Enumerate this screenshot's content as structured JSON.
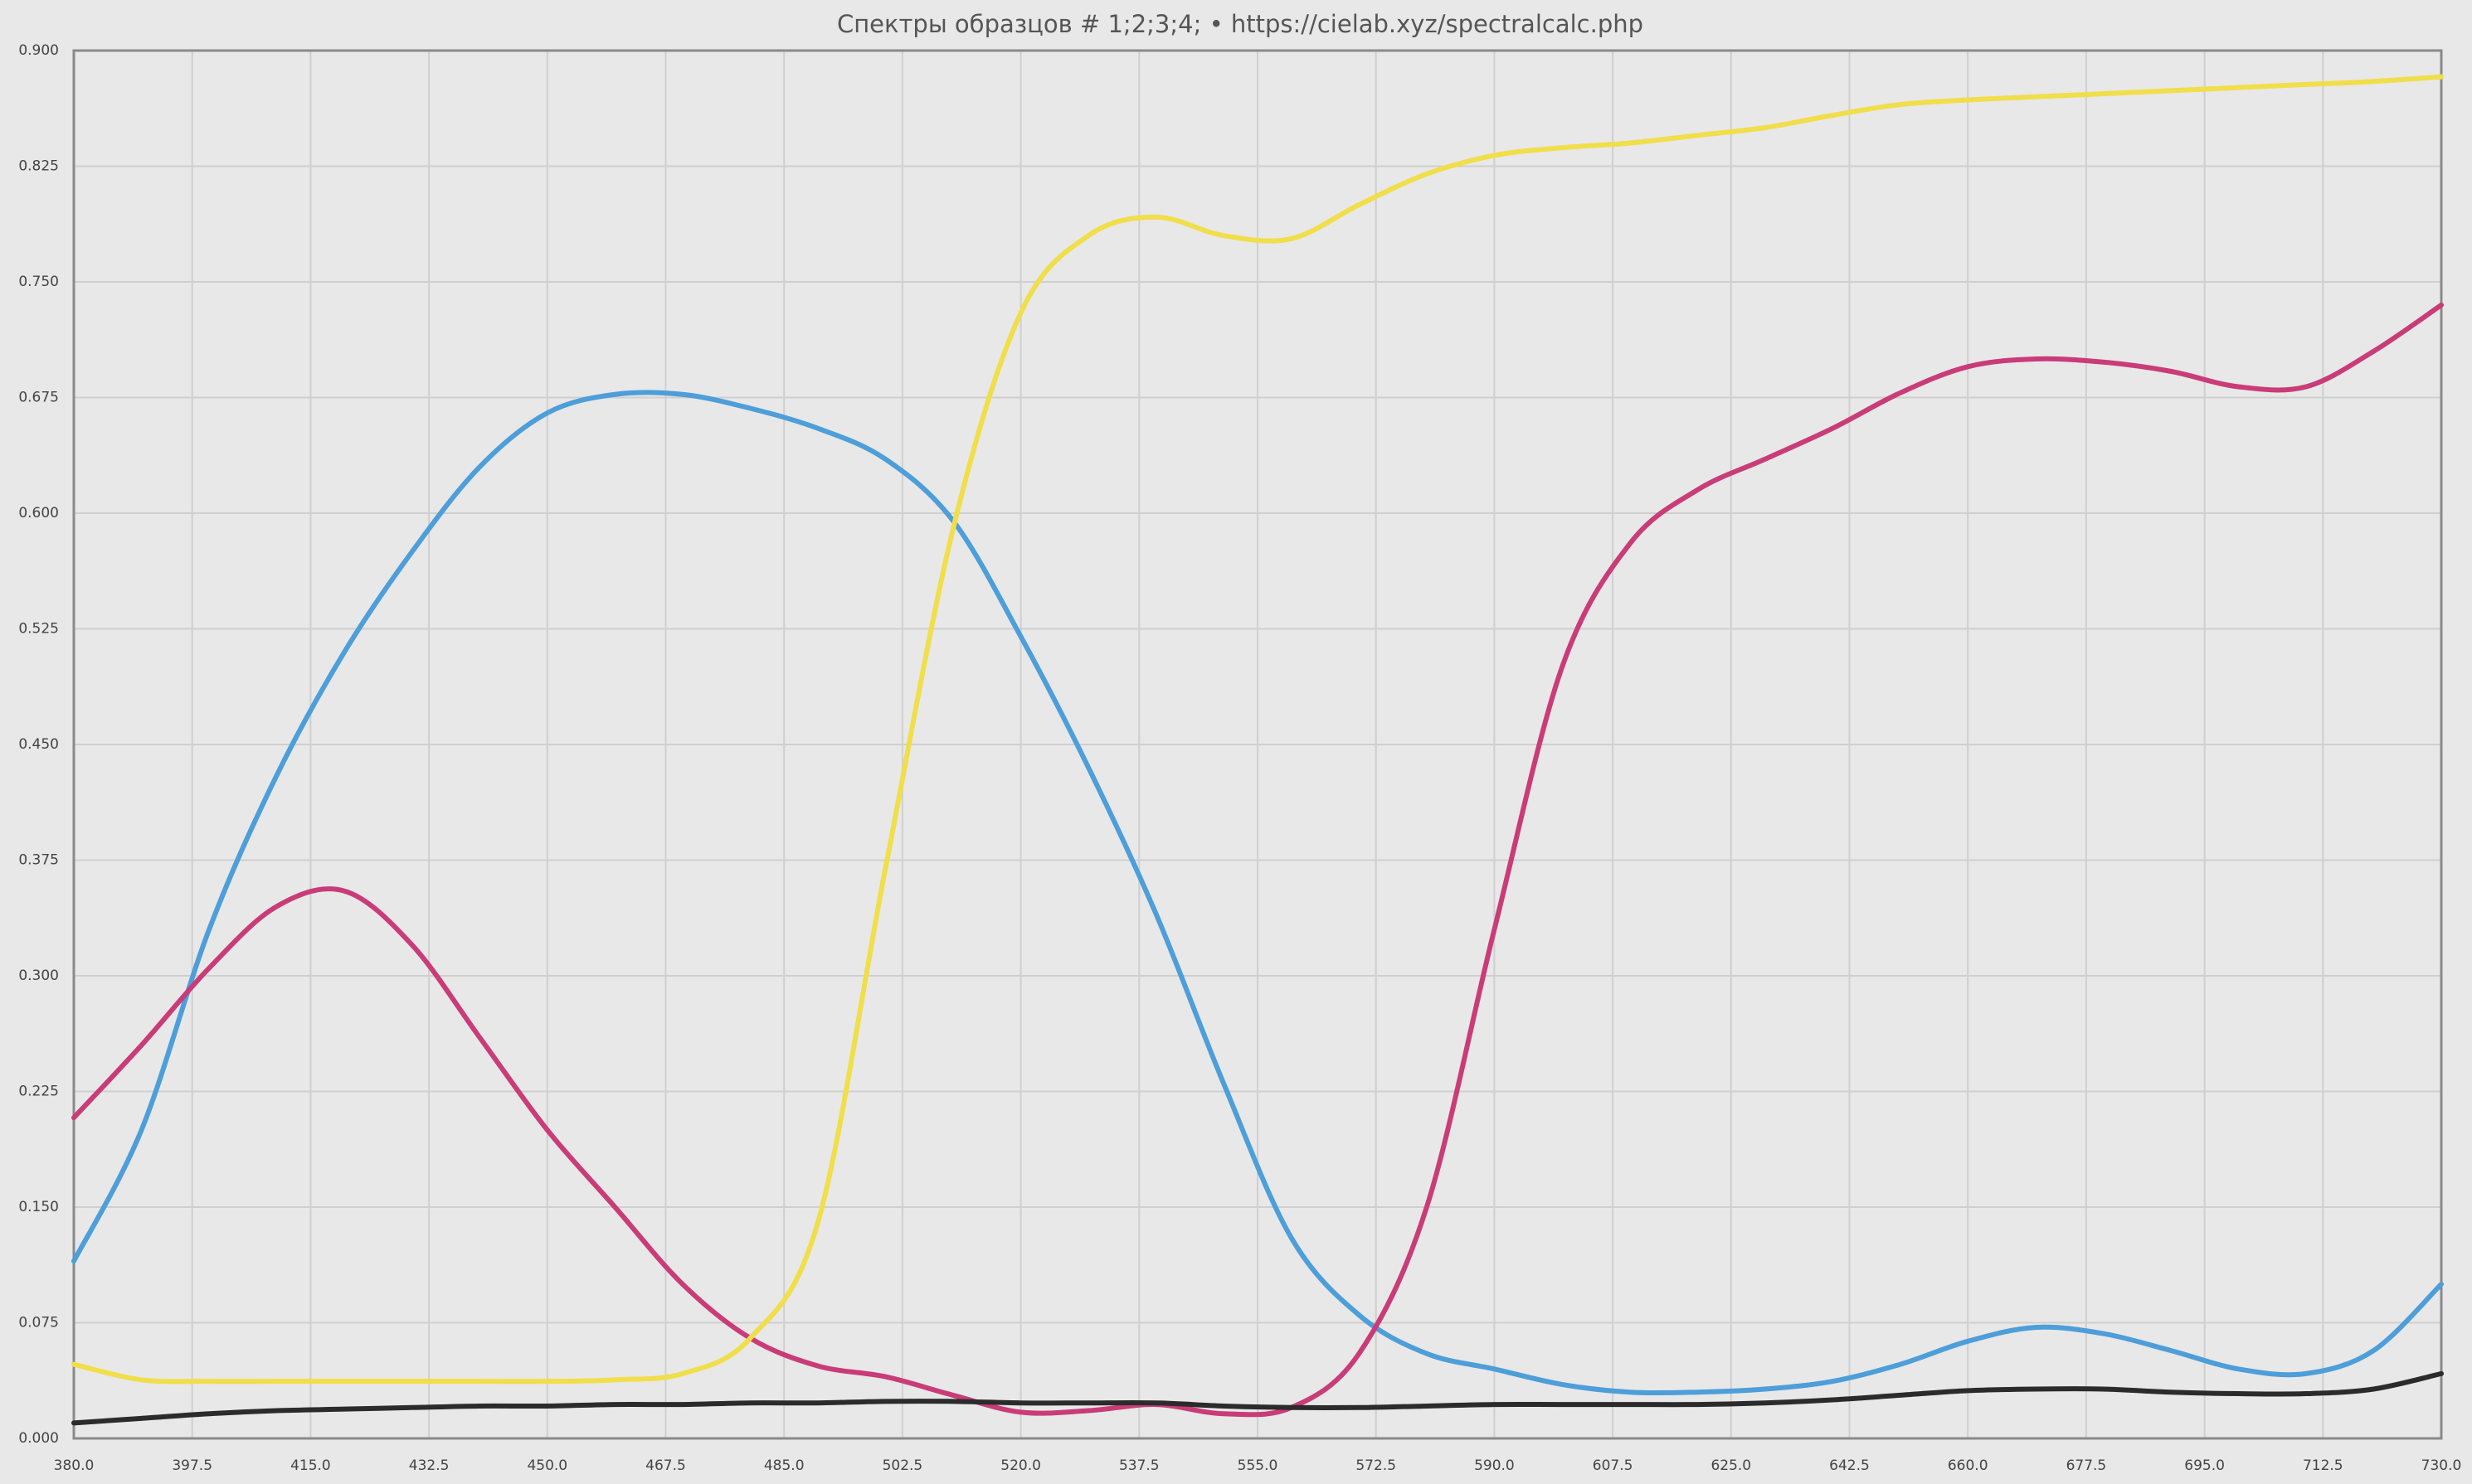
{
  "chart_data": {
    "type": "line",
    "title": "Спектры образцов # 1;2;3;4;  •  https://cielab.xyz/spectralcalc.php",
    "x": [
      380,
      390,
      400,
      410,
      420,
      430,
      440,
      450,
      460,
      470,
      480,
      490,
      500,
      510,
      520,
      530,
      540,
      550,
      560,
      570,
      580,
      590,
      600,
      610,
      620,
      630,
      640,
      650,
      660,
      670,
      680,
      690,
      700,
      710,
      720,
      730
    ],
    "series": [
      {
        "color": "#4d9ed9",
        "values": [
          0.115,
          0.2,
          0.33,
          0.43,
          0.51,
          0.575,
          0.63,
          0.665,
          0.677,
          0.677,
          0.668,
          0.655,
          0.635,
          0.595,
          0.52,
          0.435,
          0.34,
          0.23,
          0.13,
          0.08,
          0.055,
          0.045,
          0.035,
          0.03,
          0.03,
          0.032,
          0.037,
          0.048,
          0.063,
          0.072,
          0.068,
          0.057,
          0.045,
          0.042,
          0.057,
          0.1
        ]
      },
      {
        "color": "#c93c78",
        "values": [
          0.208,
          0.255,
          0.305,
          0.345,
          0.355,
          0.32,
          0.26,
          0.2,
          0.15,
          0.1,
          0.065,
          0.047,
          0.04,
          0.028,
          0.017,
          0.018,
          0.022,
          0.016,
          0.02,
          0.055,
          0.15,
          0.33,
          0.5,
          0.58,
          0.615,
          0.635,
          0.655,
          0.678,
          0.695,
          0.7,
          0.698,
          0.692,
          0.682,
          0.682,
          0.705,
          0.735
        ]
      },
      {
        "color": "#f0de4a",
        "values": [
          0.048,
          0.038,
          0.037,
          0.037,
          0.037,
          0.037,
          0.037,
          0.037,
          0.038,
          0.042,
          0.065,
          0.14,
          0.37,
          0.59,
          0.73,
          0.78,
          0.792,
          0.78,
          0.778,
          0.8,
          0.82,
          0.832,
          0.837,
          0.84,
          0.845,
          0.85,
          0.858,
          0.865,
          0.868,
          0.87,
          0.872,
          0.874,
          0.876,
          0.878,
          0.88,
          0.883
        ]
      },
      {
        "color": "#2b2b2b",
        "values": [
          0.01,
          0.013,
          0.016,
          0.018,
          0.019,
          0.02,
          0.021,
          0.021,
          0.022,
          0.022,
          0.023,
          0.023,
          0.024,
          0.024,
          0.023,
          0.023,
          0.023,
          0.021,
          0.02,
          0.02,
          0.021,
          0.022,
          0.022,
          0.022,
          0.022,
          0.023,
          0.025,
          0.028,
          0.031,
          0.032,
          0.032,
          0.03,
          0.029,
          0.029,
          0.032,
          0.042
        ]
      }
    ],
    "xlim": [
      380,
      730
    ],
    "ylim": [
      0,
      0.9
    ],
    "xticks": [
      {
        "value": 380,
        "label": "380.0"
      },
      {
        "value": 397.5,
        "label": "397.5"
      },
      {
        "value": 415,
        "label": "415.0"
      },
      {
        "value": 432.5,
        "label": "432.5"
      },
      {
        "value": 450,
        "label": "450.0"
      },
      {
        "value": 467.5,
        "label": "467.5"
      },
      {
        "value": 485,
        "label": "485.0"
      },
      {
        "value": 502.5,
        "label": "502.5"
      },
      {
        "value": 520,
        "label": "520.0"
      },
      {
        "value": 537.5,
        "label": "537.5"
      },
      {
        "value": 555,
        "label": "555.0"
      },
      {
        "value": 572.5,
        "label": "572.5"
      },
      {
        "value": 590,
        "label": "590.0"
      },
      {
        "value": 607.5,
        "label": "607.5"
      },
      {
        "value": 625,
        "label": "625.0"
      },
      {
        "value": 642.5,
        "label": "642.5"
      },
      {
        "value": 660,
        "label": "660.0"
      },
      {
        "value": 677.5,
        "label": "677.5"
      },
      {
        "value": 695,
        "label": "695.0"
      },
      {
        "value": 712.5,
        "label": "712.5"
      },
      {
        "value": 730,
        "label": "730.0"
      }
    ],
    "yticks": [
      {
        "value": 0,
        "label": "0.000"
      },
      {
        "value": 0.075,
        "label": "0.075"
      },
      {
        "value": 0.15,
        "label": "0.150"
      },
      {
        "value": 0.225,
        "label": "0.225"
      },
      {
        "value": 0.3,
        "label": "0.300"
      },
      {
        "value": 0.375,
        "label": "0.375"
      },
      {
        "value": 0.45,
        "label": "0.450"
      },
      {
        "value": 0.525,
        "label": "0.525"
      },
      {
        "value": 0.6,
        "label": "0.600"
      },
      {
        "value": 0.675,
        "label": "0.675"
      },
      {
        "value": 0.75,
        "label": "0.750"
      },
      {
        "value": 0.825,
        "label": "0.825"
      },
      {
        "value": 0.9,
        "label": "0.900"
      }
    ],
    "grid": true
  }
}
